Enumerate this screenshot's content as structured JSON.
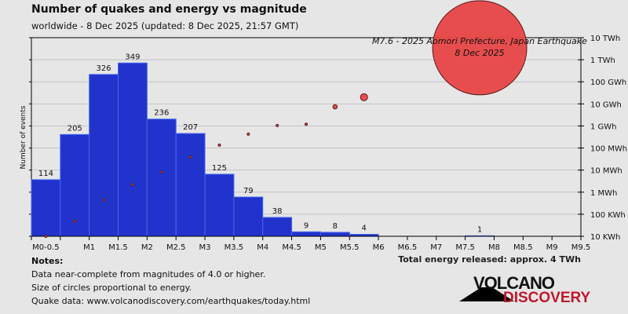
{
  "chart_data": {
    "type": "bar",
    "title": "Number of quakes and energy vs magnitude",
    "subtitle": "worldwide -  8 Dec 2025 (updated: 8 Dec 2025, 21:57 GMT)",
    "ylabel": "Number of events",
    "ylim": [
      0,
      400
    ],
    "xlim": [
      0,
      9.5
    ],
    "x_tick_labels": [
      "M0-0.5",
      "M1",
      "M1.5",
      "M2",
      "M2.5",
      "M3",
      "M3.5",
      "M4",
      "M4.5",
      "M5",
      "M5.5",
      "M6",
      "M6.5",
      "M7",
      "M7.5",
      "M8",
      "M8.5",
      "M9",
      "M9.5"
    ],
    "x_tick_values": [
      0.25,
      1,
      1.5,
      2,
      2.5,
      3,
      3.5,
      4,
      4.5,
      5,
      5.5,
      6,
      6.5,
      7,
      7.5,
      8,
      8.5,
      9,
      9.5
    ],
    "bins": [
      {
        "from": 0,
        "to": 0.5,
        "count": 114,
        "energy_kwh": 10
      },
      {
        "from": 0.5,
        "to": 1,
        "count": 205,
        "energy_kwh": 48
      },
      {
        "from": 1,
        "to": 1.5,
        "count": 326,
        "energy_kwh": 436
      },
      {
        "from": 1.5,
        "to": 2,
        "count": 349,
        "energy_kwh": 2200
      },
      {
        "from": 2,
        "to": 2.5,
        "count": 236,
        "energy_kwh": 8300
      },
      {
        "from": 2.5,
        "to": 3,
        "count": 207,
        "energy_kwh": 39000
      },
      {
        "from": 3,
        "to": 3.5,
        "count": 125,
        "energy_kwh": 135000
      },
      {
        "from": 3.5,
        "to": 4,
        "count": 79,
        "energy_kwh": 426000
      },
      {
        "from": 4,
        "to": 4.5,
        "count": 38,
        "energy_kwh": 1050000
      },
      {
        "from": 4.5,
        "to": 5,
        "count": 9,
        "energy_kwh": 1200000
      },
      {
        "from": 5,
        "to": 5.5,
        "count": 8,
        "energy_kwh": 7400000
      },
      {
        "from": 5.5,
        "to": 6,
        "count": 4,
        "energy_kwh": 20000000
      },
      {
        "from": 7.5,
        "to": 8,
        "count": 1,
        "energy_kwh": 3500000000
      }
    ],
    "energy_axis": {
      "scale": "log",
      "tick_labels": [
        "10 KWh",
        "100 KWh",
        "1 MWh",
        "10 MWh",
        "100 MWh",
        "1 GWh",
        "10 GWh",
        "100 GWh",
        "1 TWh",
        "10 TWh"
      ],
      "tick_values_kwh": [
        10,
        100,
        1000,
        10000,
        100000,
        1000000,
        10000000,
        100000000,
        1000000000,
        10000000000
      ]
    },
    "grid": true,
    "bar_color": "#2233cc",
    "bar_edge_color": "#4466ee",
    "energy_color": "#e84444",
    "annotation": {
      "line1": "M7.6 - 2025 Aomori Prefecture, Japan Earthquake",
      "line2": "8 Dec 2025"
    }
  },
  "total_energy": "Total energy released: approx. 4 TWh",
  "notes": {
    "heading": "Notes:",
    "lines": [
      "Data near-complete from magnitudes of 4.0 or higher.",
      "Size of circles proportional to energy.",
      "Quake data: www.volcanodiscovery.com/earthquakes/today.html"
    ]
  },
  "logo": {
    "top": "VOLCANO",
    "bottom": "DISCOVERY"
  }
}
